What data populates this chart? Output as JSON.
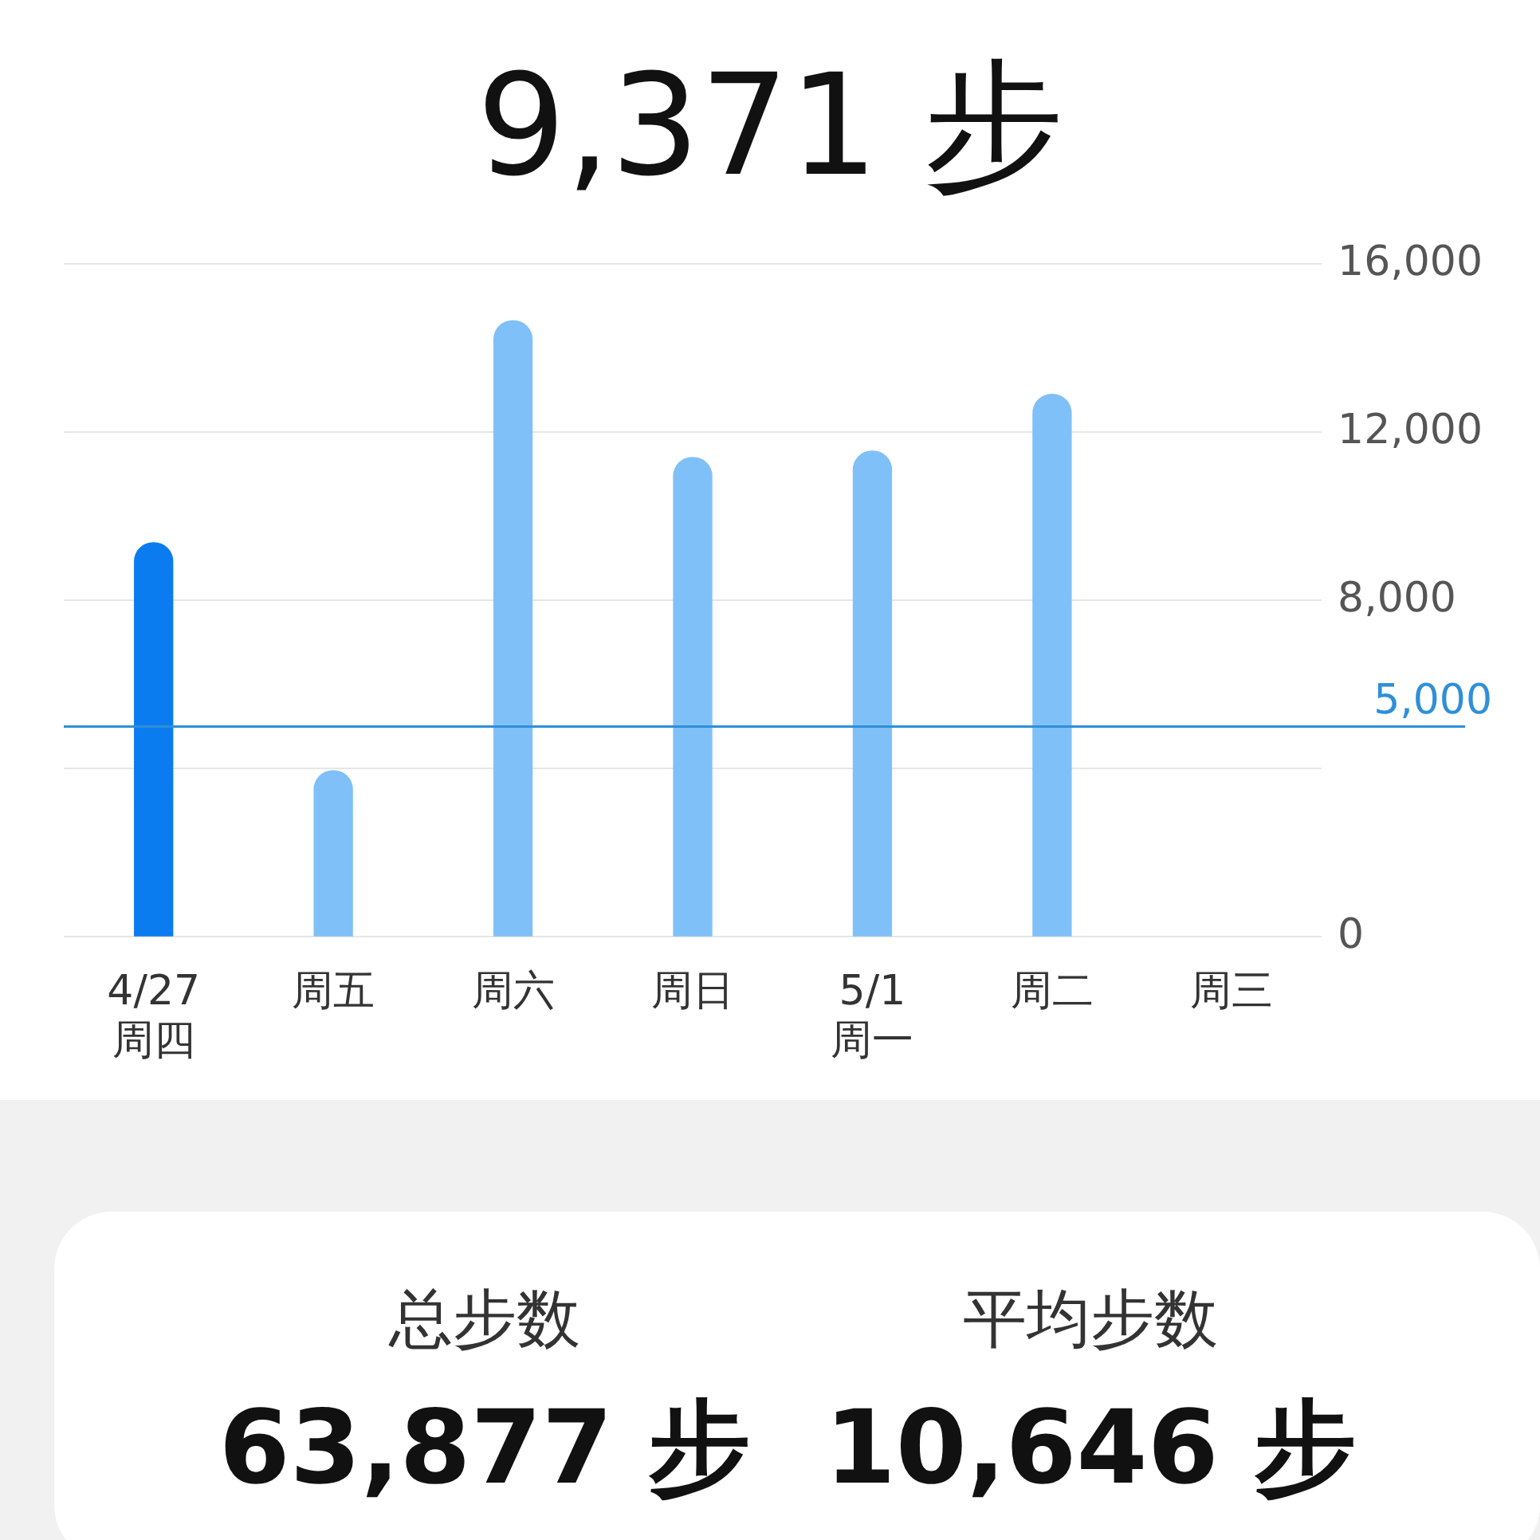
{
  "chart_data": {
    "type": "bar",
    "title": "9,371 步",
    "categories": [
      "4/27\n周四",
      "周五",
      "周六",
      "周日",
      "5/1\n周一",
      "周二",
      "周三"
    ],
    "values": [
      9371,
      3950,
      14650,
      11400,
      11550,
      12900,
      null
    ],
    "colors": [
      "#0a7cf0",
      "#80c0f8",
      "#80c0f8",
      "#80c0f8",
      "#80c0f8",
      "#80c0f8",
      "#80c0f8"
    ],
    "ylim": [
      0,
      16000
    ],
    "yticks": [
      {
        "value": 0,
        "label": "0"
      },
      {
        "value": 4000,
        "label": null
      },
      {
        "value": 8000,
        "label": "8,000"
      },
      {
        "value": 12000,
        "label": "12,000"
      },
      {
        "value": 16000,
        "label": "16,000"
      }
    ],
    "grid": "y",
    "ref_lines": [
      {
        "axis": "y",
        "value": 5000,
        "label": "5,000",
        "color": "#2f8fd8"
      }
    ],
    "annotations": [
      "总步数",
      "63,877 步",
      "平均步数",
      "10,646 步"
    ]
  }
}
